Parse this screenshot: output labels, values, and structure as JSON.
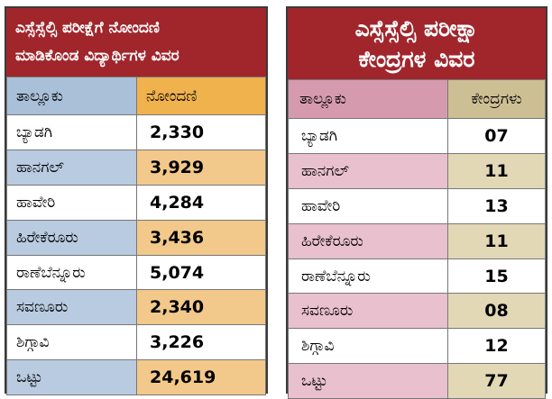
{
  "left": {
    "title_line1": "ಎಸ್ಸೆಸ್ಸೆಲ್ಸಿ ಪರೀಕ್ಷೆಗೆ ನೋಂದಣಿ",
    "title_line2": "ಮಾಡಿಕೊಂಡ ವಿದ್ಯಾರ್ಥಿಗಳ ವಿವರ",
    "header_taluk": "ತಾಲ್ಲೂಕು",
    "header_registration": "ನೋಂದಣಿ",
    "rows": [
      {
        "taluk": "ಬ್ಯಾಡಗಿ",
        "value": "2,330"
      },
      {
        "taluk": "ಹಾನಗಲ್",
        "value": "3,929"
      },
      {
        "taluk": "ಹಾವೇರಿ",
        "value": "4,284"
      },
      {
        "taluk": "ಹಿರೇಕೆರೂರು",
        "value": "3,436"
      },
      {
        "taluk": "ರಾಣೆಬೆನ್ನೂರು",
        "value": "5,074"
      },
      {
        "taluk": "ಸವಣೂರು",
        "value": "2,340"
      },
      {
        "taluk": "ಶಿಗ್ಗಾವಿ",
        "value": "3,226"
      },
      {
        "taluk": "ಒಟ್ಟು",
        "value": "24,619"
      }
    ],
    "colors": {
      "title_bg": "#a0262c",
      "header_taluk": "#a9c0d8",
      "header_value": "#f0b24d",
      "alt_taluk": "#b9cbe0",
      "alt_value": "#f2c98a"
    }
  },
  "right": {
    "title_line1": "ಎಸ್ಸೆಸ್ಸೆಲ್ಸಿ ಪರೀಕ್ಷಾ",
    "title_line2": "ಕೇಂದ್ರಗಳ ವಿವರ",
    "header_taluk": "ತಾಲ್ಲೂಕು",
    "header_centres": "ಕೇಂದ್ರಗಳು",
    "rows": [
      {
        "taluk": "ಬ್ಯಾಡಗಿ",
        "value": "07"
      },
      {
        "taluk": "ಹಾನಗಲ್",
        "value": "11"
      },
      {
        "taluk": "ಹಾವೇರಿ",
        "value": "13"
      },
      {
        "taluk": "ಹಿರೇಕೆರೂರು",
        "value": "11"
      },
      {
        "taluk": "ರಾಣೆಬೆನ್ನೂರು",
        "value": "15"
      },
      {
        "taluk": "ಸವಣೂರು",
        "value": "08"
      },
      {
        "taluk": "ಶಿಗ್ಗಾವಿ",
        "value": "12"
      },
      {
        "taluk": "ಒಟ್ಟು",
        "value": "77"
      }
    ],
    "colors": {
      "title_bg": "#a0262c",
      "header_taluk": "#d69aae",
      "header_value": "#cdbf94",
      "alt_taluk": "#e9c0cd",
      "alt_value": "#e2d8b6"
    }
  }
}
